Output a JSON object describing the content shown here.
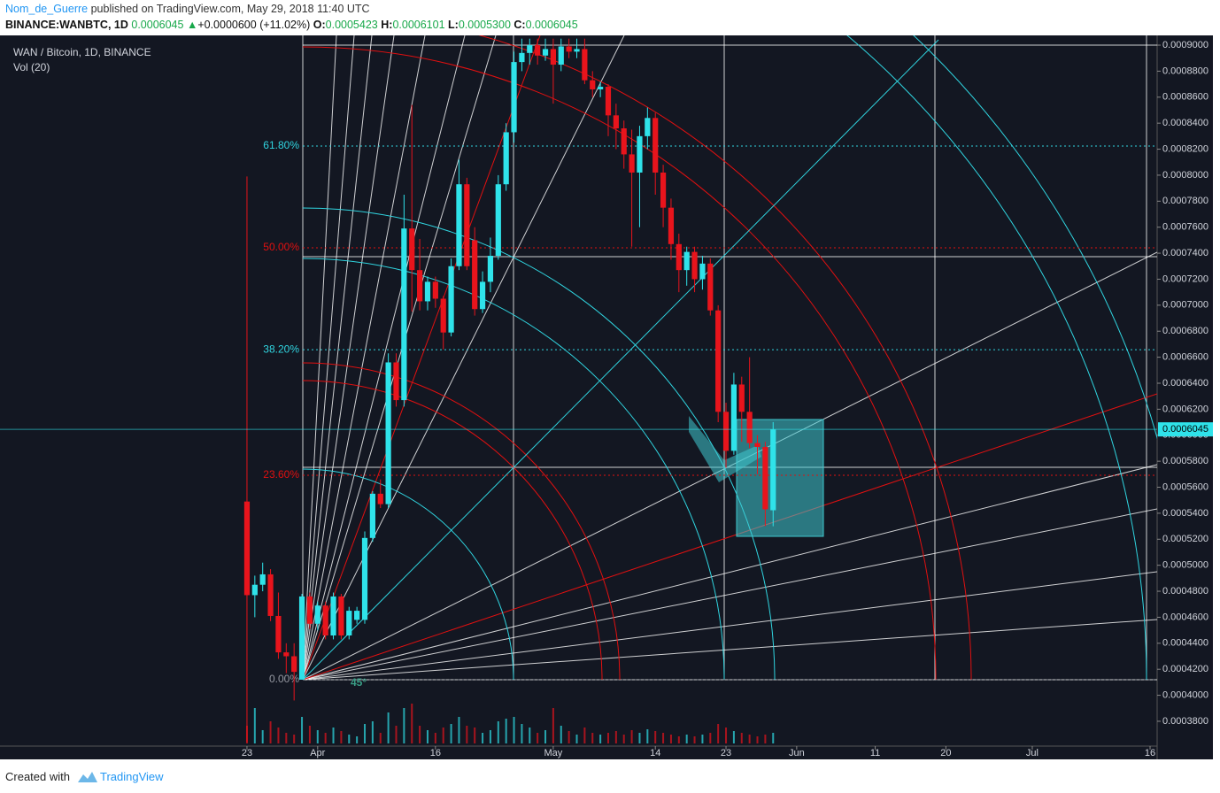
{
  "header": {
    "author": "Nom_de_Guerre",
    "published": " published on TradingView.com, May 29, 2018 11:40 UTC",
    "symbol": "BINANCE:WANBTC, 1D",
    "last": "0.0006045",
    "arrow": "▲",
    "change": "+0.0000600 (+11.02%)",
    "o_label": "O:",
    "o": "0.0005423",
    "h_label": "H:",
    "h": "0.0006101",
    "l_label": "L:",
    "l": "0.0005300",
    "c_label": "C:",
    "c": "0.0006045"
  },
  "chart_data": {
    "type": "candlestick",
    "title": "WAN / Bitcoin, 1D, BINANCE",
    "subtitle": "Vol (20)",
    "annotation": "45°",
    "up_color": "#2fe3ea",
    "down_color": "#e8141c",
    "x": [
      0,
      1,
      2,
      3,
      4,
      5,
      6,
      7,
      8,
      9,
      10,
      11,
      12,
      13,
      14,
      15,
      16,
      17,
      18,
      19,
      20,
      21,
      22,
      23,
      24,
      25,
      26,
      27,
      28,
      29,
      30,
      31,
      32,
      33,
      34,
      35,
      36,
      37,
      38,
      39,
      40,
      41,
      42,
      43,
      44,
      45,
      46,
      47,
      48,
      49,
      50,
      51,
      52,
      53,
      54,
      55,
      56,
      57,
      58,
      59,
      60,
      61,
      62,
      63,
      64,
      65,
      66,
      67
    ],
    "ohlc": [
      [
        0.000549,
        0.000799,
        0.000364,
        0.000477
      ],
      [
        0.000477,
        0.000492,
        0.00046,
        0.000485
      ],
      [
        0.000485,
        0.000502,
        0.00048,
        0.000493
      ],
      [
        0.000493,
        0.000497,
        0.000457,
        0.000461
      ],
      [
        0.000461,
        0.000479,
        0.000428,
        0.000433
      ],
      [
        0.000433,
        0.00044,
        0.000417,
        0.00043
      ],
      [
        0.00043,
        0.00044,
        0.000396,
        0.000418
      ],
      [
        0.000412,
        0.000478,
        0.000412,
        0.000476
      ],
      [
        0.000476,
        0.000479,
        0.000451,
        0.000455
      ],
      [
        0.000455,
        0.000472,
        0.00045,
        0.000469
      ],
      [
        0.000469,
        0.000472,
        0.000443,
        0.000446
      ],
      [
        0.000446,
        0.000479,
        0.000443,
        0.000476
      ],
      [
        0.000476,
        0.000478,
        0.000443,
        0.000446
      ],
      [
        0.000446,
        0.000468,
        0.000443,
        0.000465
      ],
      [
        0.000458,
        0.000468,
        0.000455,
        0.000465
      ],
      [
        0.000458,
        0.000526,
        0.000455,
        0.000521
      ],
      [
        0.000521,
        0.000557,
        0.000518,
        0.000555
      ],
      [
        0.000555,
        0.000566,
        0.000544,
        0.000547
      ],
      [
        0.000547,
        0.000663,
        0.000544,
        0.000656
      ],
      [
        0.000656,
        0.000663,
        0.000622,
        0.000627
      ],
      [
        0.000627,
        0.000785,
        0.000622,
        0.000759
      ],
      [
        0.000759,
        0.000854,
        0.000695,
        0.000727
      ],
      [
        0.000727,
        0.000751,
        0.000696,
        0.000703
      ],
      [
        0.000703,
        0.000722,
        0.000696,
        0.000718
      ],
      [
        0.000718,
        0.000722,
        0.000698,
        0.000705
      ],
      [
        0.000705,
        0.000707,
        0.000666,
        0.000679
      ],
      [
        0.000679,
        0.000736,
        0.000676,
        0.00073
      ],
      [
        0.00073,
        0.000812,
        0.000727,
        0.000793
      ],
      [
        0.000793,
        0.000798,
        0.000727,
        0.00073
      ],
      [
        0.00075,
        0.00076,
        0.000692,
        0.000697
      ],
      [
        0.000697,
        0.000726,
        0.000694,
        0.000718
      ],
      [
        0.000718,
        0.000752,
        0.00071,
        0.000738
      ],
      [
        0.000738,
        0.0008,
        0.000735,
        0.000793
      ],
      [
        0.000793,
        0.00084,
        0.000788,
        0.000833
      ],
      [
        0.000833,
        0.000895,
        0.000825,
        0.000887
      ],
      [
        0.000887,
        0.000905,
        0.00088,
        0.000894
      ],
      [
        0.000894,
        0.000905,
        0.000885,
        0.0009
      ],
      [
        0.0009,
        0.000905,
        0.000885,
        0.000892
      ],
      [
        0.000892,
        0.000905,
        0.000888,
        0.000897
      ],
      [
        0.000897,
        0.000905,
        0.000855,
        0.000885
      ],
      [
        0.000885,
        0.000905,
        0.00088,
        0.000899
      ],
      [
        0.000899,
        0.000905,
        0.00089,
        0.000895
      ],
      [
        0.000895,
        0.000905,
        0.00089,
        0.000897
      ],
      [
        0.000897,
        0.000905,
        0.00087,
        0.000873
      ],
      [
        0.000873,
        0.00088,
        0.00086,
        0.000866
      ],
      [
        0.000866,
        0.000872,
        0.00086,
        0.000868
      ],
      [
        0.000868,
        0.00087,
        0.00083,
        0.000846
      ],
      [
        0.000846,
        0.000855,
        0.00082,
        0.000836
      ],
      [
        0.000836,
        0.000842,
        0.000805,
        0.000816
      ],
      [
        0.000816,
        0.000835,
        0.000745,
        0.000802
      ],
      [
        0.000802,
        0.000838,
        0.00076,
        0.00083
      ],
      [
        0.00083,
        0.000852,
        0.00082,
        0.000844
      ],
      [
        0.000844,
        0.000848,
        0.000785,
        0.000802
      ],
      [
        0.000802,
        0.000808,
        0.00076,
        0.000775
      ],
      [
        0.000775,
        0.000782,
        0.000735,
        0.000747
      ],
      [
        0.000747,
        0.000755,
        0.00071,
        0.000727
      ],
      [
        0.000727,
        0.000745,
        0.000715,
        0.000741
      ],
      [
        0.000741,
        0.000745,
        0.00071,
        0.00072
      ],
      [
        0.00072,
        0.000738,
        0.000712,
        0.000732
      ],
      [
        0.000732,
        0.000736,
        0.000692,
        0.000696
      ],
      [
        0.000696,
        0.0007,
        0.00061,
        0.000618
      ],
      [
        0.000618,
        0.000625,
        0.000575,
        0.000588
      ],
      [
        0.000588,
        0.000648,
        0.000585,
        0.000639
      ],
      [
        0.000639,
        0.000645,
        0.000595,
        0.000618
      ],
      [
        0.000618,
        0.00066,
        0.00059,
        0.000594
      ],
      [
        0.000594,
        0.0006,
        0.00057,
        0.000591
      ],
      [
        0.000591,
        0.000595,
        0.00053,
        0.000543
      ],
      [
        0.0005423,
        0.0006101,
        0.00053,
        0.0006045
      ]
    ],
    "volume": [
      20,
      40,
      15,
      25,
      18,
      12,
      10,
      30,
      20,
      15,
      12,
      18,
      14,
      10,
      8,
      22,
      25,
      12,
      35,
      20,
      40,
      45,
      20,
      15,
      12,
      18,
      22,
      30,
      20,
      18,
      12,
      15,
      25,
      28,
      30,
      22,
      18,
      12,
      15,
      40,
      20,
      14,
      10,
      18,
      12,
      10,
      12,
      14,
      10,
      15,
      12,
      16,
      14,
      12,
      10,
      8,
      10,
      8,
      10,
      12,
      22,
      18,
      14,
      12,
      10,
      8,
      10,
      12
    ],
    "xlim": [
      -31.45,
      115.9
    ],
    "xticks": [
      {
        "value": 0,
        "label": "23"
      },
      {
        "value": 9,
        "label": "Apr"
      },
      {
        "value": 24,
        "label": "16"
      },
      {
        "value": 39,
        "label": "May"
      },
      {
        "value": 52,
        "label": "14"
      },
      {
        "value": 61,
        "label": "23"
      },
      {
        "value": 70,
        "label": "Jun"
      },
      {
        "value": 80,
        "label": "11"
      },
      {
        "value": 89,
        "label": "20"
      },
      {
        "value": 100,
        "label": "Jul"
      },
      {
        "value": 115,
        "label": "16"
      }
    ],
    "ylim": [
      0.0003507,
      0.0009075
    ],
    "yticks": [
      {
        "value": 0.0009,
        "label": "0.0009000"
      },
      {
        "value": 0.00088,
        "label": "0.0008800"
      },
      {
        "value": 0.00086,
        "label": "0.0008600"
      },
      {
        "value": 0.00084,
        "label": "0.0008400"
      },
      {
        "value": 0.00082,
        "label": "0.0008200"
      },
      {
        "value": 0.0008,
        "label": "0.0008000"
      },
      {
        "value": 0.00078,
        "label": "0.0007800"
      },
      {
        "value": 0.00076,
        "label": "0.0007600"
      },
      {
        "value": 0.00074,
        "label": "0.0007400"
      },
      {
        "value": 0.00072,
        "label": "0.0007200"
      },
      {
        "value": 0.0007,
        "label": "0.0007000"
      },
      {
        "value": 0.00068,
        "label": "0.0006800"
      },
      {
        "value": 0.00066,
        "label": "0.0006600"
      },
      {
        "value": 0.00064,
        "label": "0.0006400"
      },
      {
        "value": 0.00062,
        "label": "0.0006200"
      },
      {
        "value": 0.0006,
        "label": "0.0006000"
      },
      {
        "value": 0.00058,
        "label": "0.0005800"
      },
      {
        "value": 0.00056,
        "label": "0.0005600"
      },
      {
        "value": 0.00054,
        "label": "0.0005400"
      },
      {
        "value": 0.00052,
        "label": "0.0005200"
      },
      {
        "value": 0.0005,
        "label": "0.0005000"
      },
      {
        "value": 0.00048,
        "label": "0.0004800"
      },
      {
        "value": 0.00046,
        "label": "0.0004600"
      },
      {
        "value": 0.00044,
        "label": "0.0004400"
      },
      {
        "value": 0.00042,
        "label": "0.0004200"
      },
      {
        "value": 0.0004,
        "label": "0.0004000"
      },
      {
        "value": 0.00038,
        "label": "0.0003800"
      }
    ],
    "fib_levels": [
      {
        "label": "61.80%",
        "value": 0.0008224,
        "color": "#30d5e0"
      },
      {
        "label": "50.00%",
        "value": 0.0007441,
        "color": "#e01010"
      },
      {
        "label": "38.20%",
        "value": 0.0006658,
        "color": "#30d5e0"
      },
      {
        "label": "23.60%",
        "value": 0.0005692,
        "color": "#e01010"
      },
      {
        "label": "0.00%",
        "value": 0.000412,
        "color": "#9598a1"
      }
    ]
  },
  "footer": {
    "created": "Created with",
    "brand": "TradingView"
  }
}
